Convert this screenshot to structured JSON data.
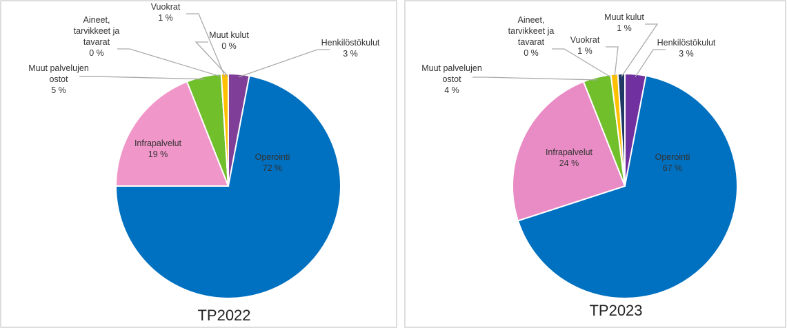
{
  "chart_data": [
    {
      "type": "pie",
      "title": "TP2022",
      "categories": [
        "Henkilöstökulut",
        "Operointi",
        "Infrapalvelut",
        "Muut palvelujen ostot",
        "Aineet, tarvikkeet ja tavarat",
        "Vuokrat",
        "Muut kulut"
      ],
      "values": [
        3,
        72,
        19,
        5,
        0,
        1,
        0
      ],
      "value_labels": [
        "3 %",
        "72 %",
        "19 %",
        "5 %",
        "0 %",
        "1 %",
        "0 %"
      ],
      "colors": [
        "#7f3f98",
        "#0070c0",
        "#f096c8",
        "#70bf2b",
        "#ffe699",
        "#ffc000",
        "#1f3864"
      ]
    },
    {
      "type": "pie",
      "title": "TP2023",
      "categories": [
        "Henkilöstökulut",
        "Operointi",
        "Infrapalvelut",
        "Muut palvelujen ostot",
        "Aineet, tarvikkeet ja tavarat",
        "Vuokrat",
        "Muut kulut"
      ],
      "values": [
        3,
        67,
        24,
        4,
        0,
        1,
        1
      ],
      "value_labels": [
        "3 %",
        "67 %",
        "24 %",
        "4 %",
        "0 %",
        "1 %",
        "1 %"
      ],
      "colors": [
        "#7030a0",
        "#0070c0",
        "#e98bc4",
        "#70bf2b",
        "#ffe699",
        "#ffc000",
        "#1f3864"
      ]
    }
  ]
}
